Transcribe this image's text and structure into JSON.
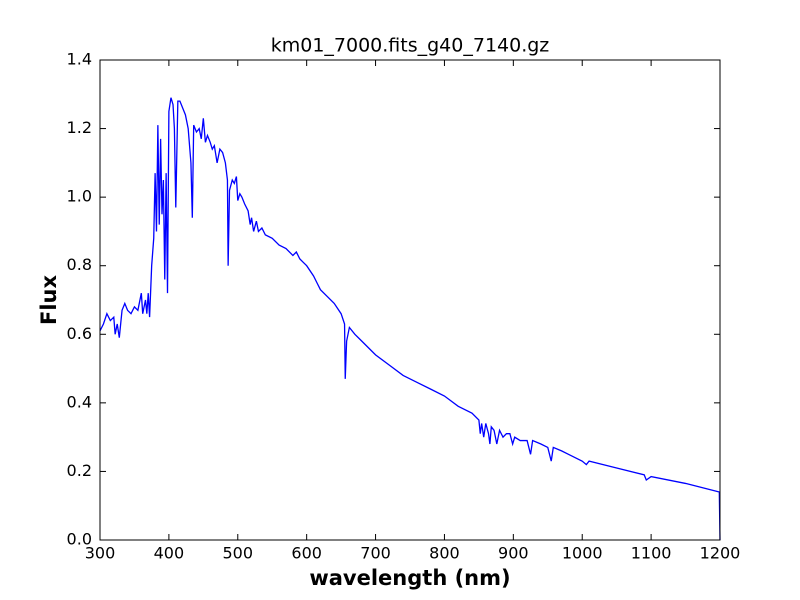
{
  "chart_data": {
    "type": "line",
    "title": "km01_7000.fits_g40_7140.gz",
    "x_label": "wavelength (nm)",
    "y_label": "Flux",
    "color": "#0000ff",
    "xlim": [
      300,
      1200
    ],
    "ylim": [
      0,
      1.4
    ],
    "xticks": [
      300,
      400,
      500,
      600,
      700,
      800,
      900,
      1000,
      1100,
      1200
    ],
    "yticks": [
      {
        "value": 0,
        "label": "0.0"
      },
      0.2,
      0.4,
      0.6,
      0.8,
      {
        "value": 1,
        "label": "1.0"
      },
      1.2,
      1.4
    ],
    "x": [
      300,
      305,
      310,
      315,
      320,
      322,
      325,
      328,
      332,
      336,
      340,
      345,
      350,
      355,
      360,
      362,
      366,
      368,
      370,
      372,
      375,
      378,
      380,
      382,
      384,
      386,
      388,
      390,
      392,
      394,
      396,
      398,
      400,
      403,
      406,
      408,
      410,
      413,
      416,
      420,
      424,
      428,
      432,
      434,
      436,
      440,
      444,
      447,
      450,
      453,
      456,
      460,
      463,
      466,
      470,
      474,
      478,
      482,
      485,
      486,
      488,
      492,
      495,
      498,
      500,
      503,
      506,
      510,
      515,
      518,
      520,
      523,
      527,
      530,
      535,
      540,
      550,
      560,
      570,
      580,
      585,
      590,
      595,
      600,
      610,
      615,
      620,
      630,
      640,
      650,
      655,
      656,
      658,
      662,
      670,
      680,
      690,
      700,
      720,
      740,
      760,
      780,
      800,
      820,
      840,
      850,
      852,
      854,
      857,
      860,
      864,
      866,
      868,
      872,
      876,
      880,
      885,
      890,
      895,
      899,
      902,
      910,
      920,
      925,
      928,
      940,
      950,
      955,
      958,
      970,
      980,
      1000,
      1006,
      1010,
      1050,
      1090,
      1093,
      1100,
      1150,
      1199,
      1200
    ],
    "values": [
      0.61,
      0.63,
      0.66,
      0.64,
      0.65,
      0.6,
      0.63,
      0.59,
      0.67,
      0.69,
      0.67,
      0.66,
      0.68,
      0.67,
      0.72,
      0.66,
      0.7,
      0.66,
      0.72,
      0.65,
      0.8,
      0.88,
      1.07,
      0.9,
      1.21,
      0.92,
      1.17,
      0.95,
      1.05,
      0.76,
      1.07,
      0.72,
      1.25,
      1.29,
      1.27,
      1.2,
      0.97,
      1.28,
      1.28,
      1.26,
      1.24,
      1.2,
      1.1,
      0.94,
      1.21,
      1.19,
      1.2,
      1.17,
      1.23,
      1.16,
      1.18,
      1.16,
      1.14,
      1.15,
      1.1,
      1.14,
      1.13,
      1.1,
      1.05,
      0.8,
      1.02,
      1.05,
      1.04,
      1.06,
      0.99,
      1.01,
      1,
      0.98,
      0.96,
      0.92,
      0.94,
      0.9,
      0.93,
      0.9,
      0.91,
      0.89,
      0.88,
      0.86,
      0.85,
      0.83,
      0.84,
      0.82,
      0.81,
      0.8,
      0.77,
      0.75,
      0.73,
      0.71,
      0.69,
      0.66,
      0.63,
      0.47,
      0.58,
      0.62,
      0.6,
      0.58,
      0.56,
      0.54,
      0.51,
      0.48,
      0.46,
      0.44,
      0.42,
      0.39,
      0.37,
      0.35,
      0.31,
      0.34,
      0.3,
      0.34,
      0.31,
      0.28,
      0.33,
      0.32,
      0.28,
      0.32,
      0.3,
      0.31,
      0.31,
      0.28,
      0.3,
      0.29,
      0.29,
      0.25,
      0.29,
      0.28,
      0.27,
      0.23,
      0.27,
      0.26,
      0.25,
      0.23,
      0.22,
      0.23,
      0.21,
      0.19,
      0.175,
      0.185,
      0.165,
      0.14,
      0
    ]
  }
}
